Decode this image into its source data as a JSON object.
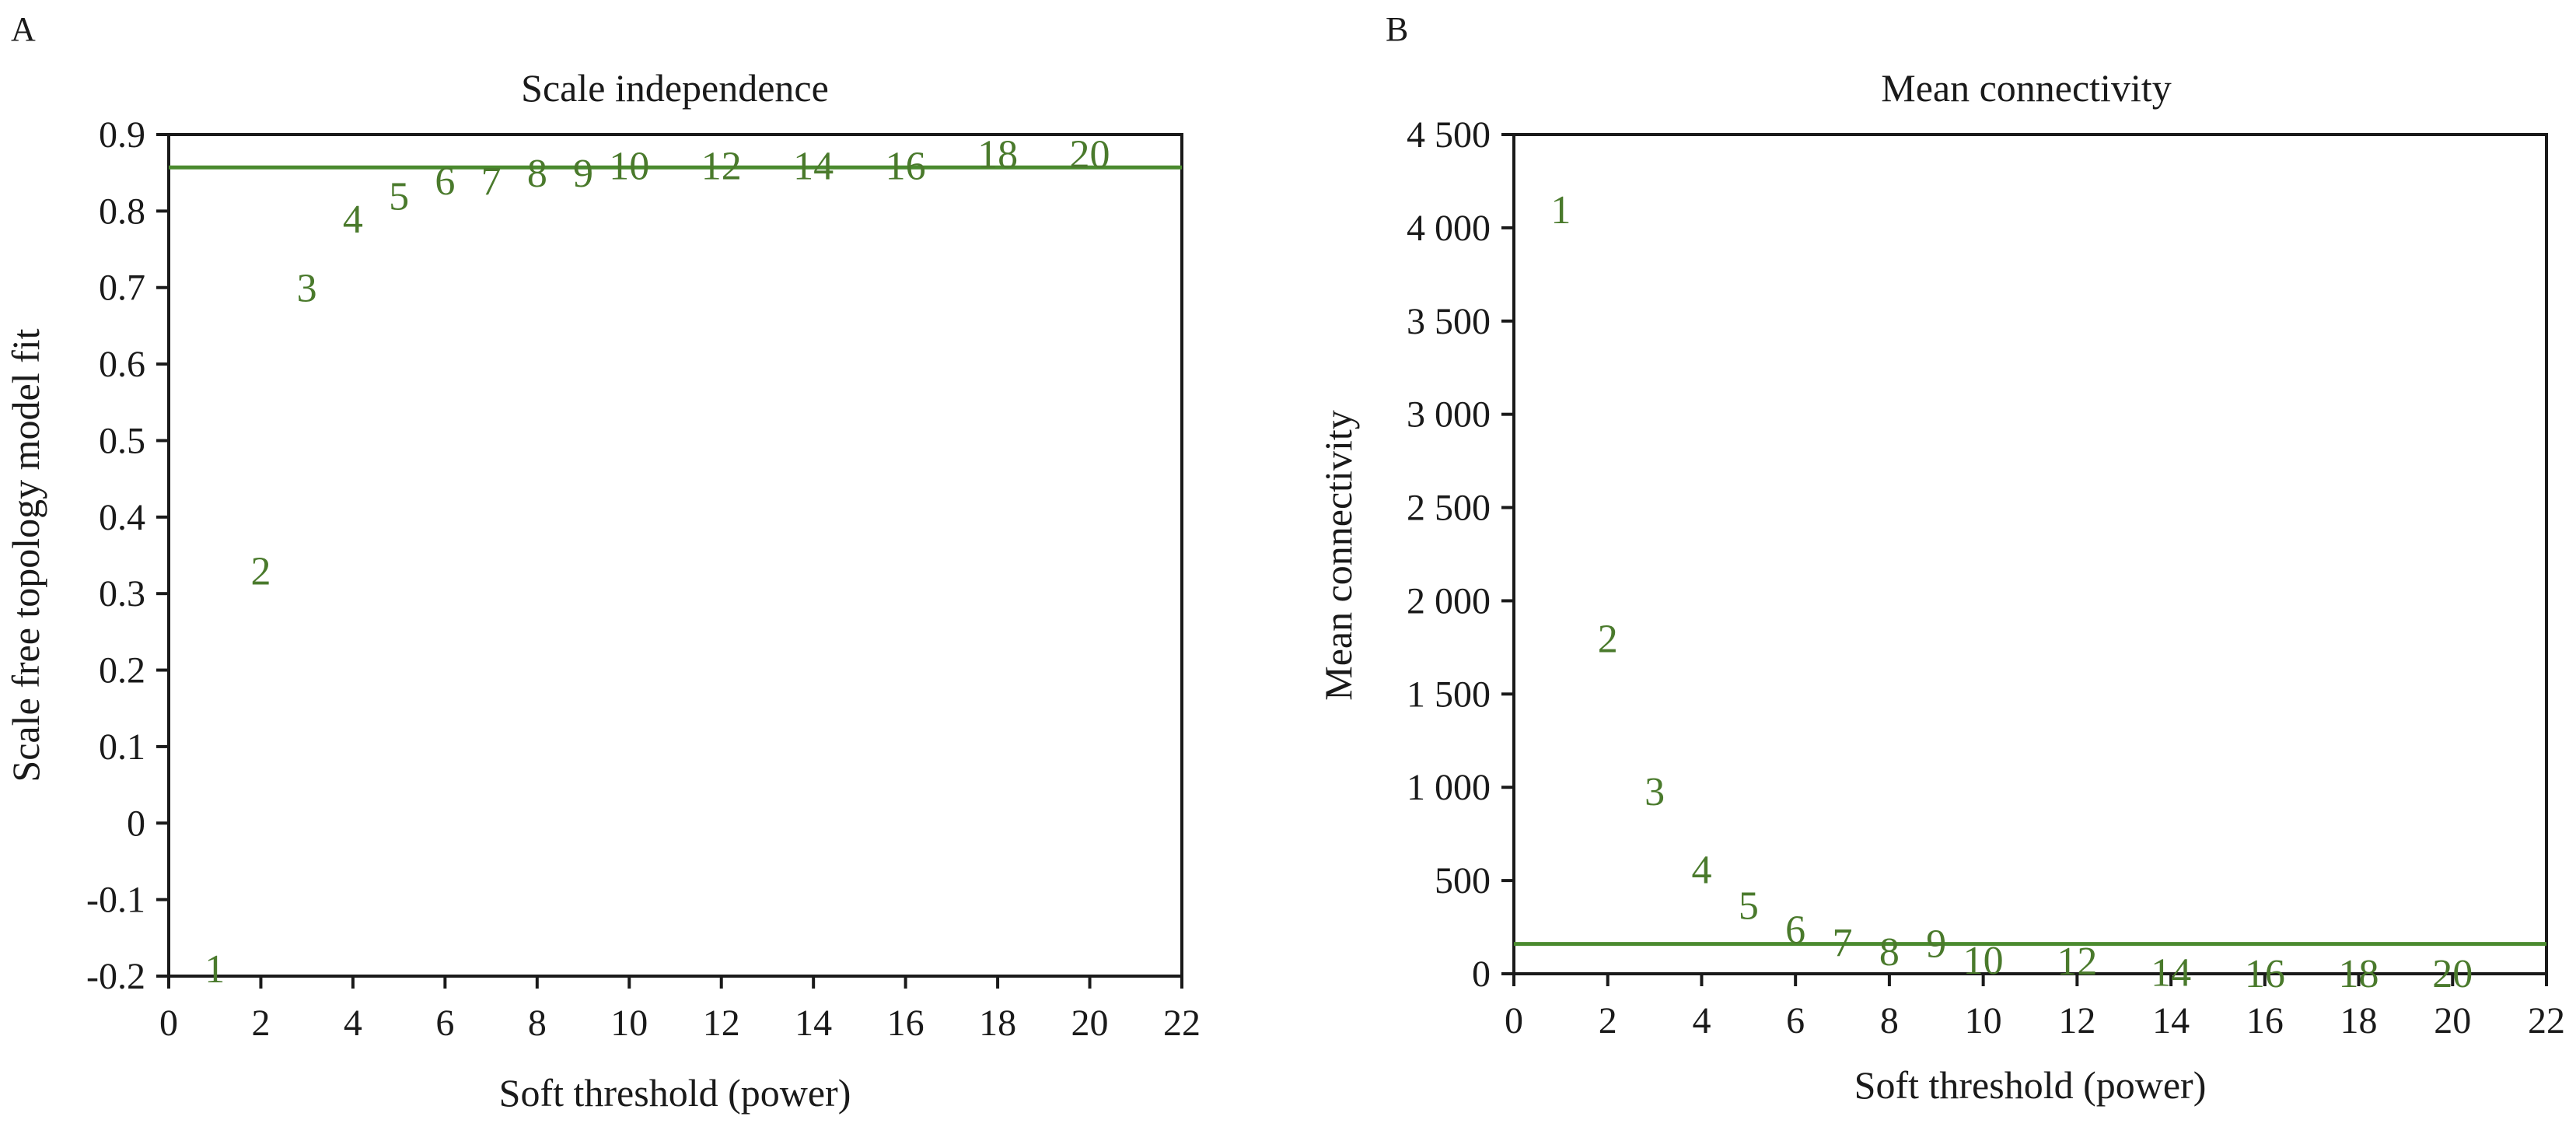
{
  "panels": [
    {
      "letter": "A",
      "chart_data": {
        "type": "scatter",
        "title": "Scale independence",
        "xlabel": "Soft threshold (power)",
        "ylabel": "Scale free topology model fit",
        "xlim": [
          0,
          22
        ],
        "ylim": [
          -0.2,
          0.9
        ],
        "xticks": [
          0,
          2,
          4,
          6,
          8,
          10,
          12,
          14,
          16,
          18,
          20,
          22
        ],
        "yticks": [
          -0.2,
          -0.1,
          0,
          0.1,
          0.2,
          0.3,
          0.4,
          0.5,
          0.6,
          0.7,
          0.8,
          0.9
        ],
        "ytick_labels": [
          "-0.2",
          "-0.1",
          "0",
          "0.1",
          "0.2",
          "0.3",
          "0.4",
          "0.5",
          "0.6",
          "0.7",
          "0.8",
          "0.9"
        ],
        "hline": 0.857,
        "grid": false,
        "points": [
          {
            "x": 1,
            "y": -0.19,
            "label": "1"
          },
          {
            "x": 2,
            "y": 0.33,
            "label": "2"
          },
          {
            "x": 3,
            "y": 0.7,
            "label": "3"
          },
          {
            "x": 4,
            "y": 0.79,
            "label": "4"
          },
          {
            "x": 5,
            "y": 0.82,
            "label": "5"
          },
          {
            "x": 6,
            "y": 0.84,
            "label": "6"
          },
          {
            "x": 7,
            "y": 0.84,
            "label": "7"
          },
          {
            "x": 8,
            "y": 0.85,
            "label": "8"
          },
          {
            "x": 9,
            "y": 0.85,
            "label": "9"
          },
          {
            "x": 10,
            "y": 0.86,
            "label": "10"
          },
          {
            "x": 12,
            "y": 0.86,
            "label": "12"
          },
          {
            "x": 14,
            "y": 0.86,
            "label": "14"
          },
          {
            "x": 16,
            "y": 0.86,
            "label": "16"
          },
          {
            "x": 18,
            "y": 0.875,
            "label": "18"
          },
          {
            "x": 20,
            "y": 0.875,
            "label": "20"
          }
        ]
      }
    },
    {
      "letter": "B",
      "chart_data": {
        "type": "scatter",
        "title": "Mean connectivity",
        "xlabel": "Soft threshold (power)",
        "ylabel": "Mean connectivity",
        "xlim": [
          0,
          22
        ],
        "ylim": [
          0,
          4500
        ],
        "xticks": [
          0,
          2,
          4,
          6,
          8,
          10,
          12,
          14,
          16,
          18,
          20,
          22
        ],
        "yticks": [
          0,
          500,
          1000,
          1500,
          2000,
          2500,
          3000,
          3500,
          4000,
          4500
        ],
        "ytick_labels": [
          "0",
          "500",
          "1 000",
          "1 500",
          "2 000",
          "2 500",
          "3 000",
          "3 500",
          "4 000",
          "4 500"
        ],
        "hline": 160,
        "grid": false,
        "points": [
          {
            "x": 1,
            "y": 4100,
            "label": "1"
          },
          {
            "x": 2,
            "y": 1800,
            "label": "2"
          },
          {
            "x": 3,
            "y": 980,
            "label": "3"
          },
          {
            "x": 4,
            "y": 560,
            "label": "4"
          },
          {
            "x": 5,
            "y": 370,
            "label": "5"
          },
          {
            "x": 6,
            "y": 240,
            "label": "6"
          },
          {
            "x": 7,
            "y": 170,
            "label": "7"
          },
          {
            "x": 8,
            "y": 120,
            "label": "8"
          },
          {
            "x": 9,
            "y": 165,
            "label": "9"
          },
          {
            "x": 10,
            "y": 75,
            "label": "10"
          },
          {
            "x": 12,
            "y": 70,
            "label": "12"
          },
          {
            "x": 14,
            "y": 10,
            "label": "14"
          },
          {
            "x": 16,
            "y": 5,
            "label": "16"
          },
          {
            "x": 18,
            "y": 5,
            "label": "18"
          },
          {
            "x": 20,
            "y": 5,
            "label": "20"
          }
        ]
      }
    }
  ],
  "colors": {
    "series": "#4a7a2c",
    "line": "#4a8a2e",
    "axis": "#1a1a1a"
  }
}
